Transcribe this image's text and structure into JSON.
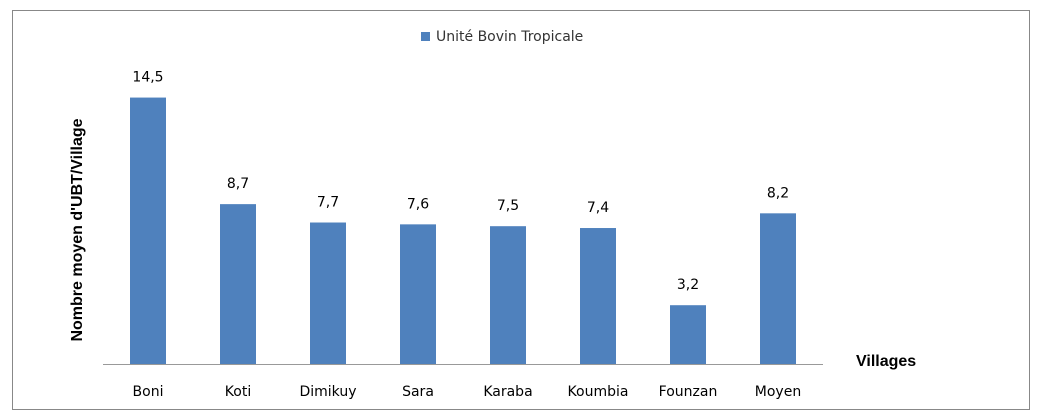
{
  "chart_data": {
    "type": "bar",
    "legend": "Unité Bovin Tropicale",
    "y_label": "Nombre moyen d'UBT/Village",
    "x_label": "Villages",
    "categories": [
      "Boni",
      "Koti",
      "Dimikuy",
      "Sara",
      "Karaba",
      "Koumbia",
      "Founzan",
      "Moyen"
    ],
    "values": [
      14.5,
      8.7,
      7.7,
      7.6,
      7.5,
      7.4,
      3.2,
      8.2
    ],
    "value_labels": [
      "14,5",
      "8,7",
      "7,7",
      "7,6",
      "7,5",
      "7,4",
      "3,2",
      "8,2"
    ],
    "color": "#4f81bd",
    "ylim": [
      0,
      16
    ]
  }
}
